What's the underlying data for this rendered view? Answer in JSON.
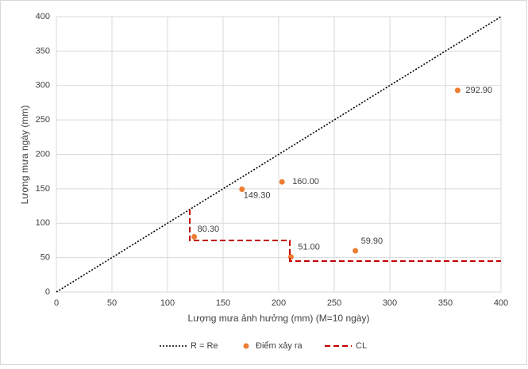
{
  "chart_data": {
    "type": "scatter",
    "x_label": "Lượng mưa ảnh hưởng (mm) (M=10 ngày)",
    "y_label": "Lượng mưa ngày (mm)",
    "xlim": [
      0,
      400
    ],
    "xticks": [
      0,
      50,
      100,
      150,
      200,
      250,
      300,
      350,
      400
    ],
    "ylim": [
      0,
      400
    ],
    "yticks": [
      0,
      50,
      100,
      150,
      200,
      250,
      300,
      350,
      400
    ],
    "grid": true,
    "legend": "bottom",
    "series": [
      {
        "name": "R = Re",
        "type": "line",
        "dash": "dotted",
        "color": "#000000",
        "x": [
          0,
          400
        ],
        "y": [
          0,
          400
        ]
      },
      {
        "name": "Điểm xảy ra",
        "type": "scatter",
        "color": "#ed7d31",
        "x": [
          167,
          203,
          124,
          211,
          269,
          361
        ],
        "y": [
          149.3,
          160,
          80.3,
          51,
          59.9,
          292.9
        ],
        "value_labels": [
          "149.30",
          "160.00",
          "80.30",
          "51.00",
          "59.90",
          "292.90"
        ]
      },
      {
        "name": "CL",
        "type": "line",
        "dash": "dashed",
        "color": "#c00000",
        "x": [
          120,
          120,
          210,
          210,
          400
        ],
        "y": [
          120,
          75,
          75,
          45,
          45
        ]
      }
    ]
  }
}
